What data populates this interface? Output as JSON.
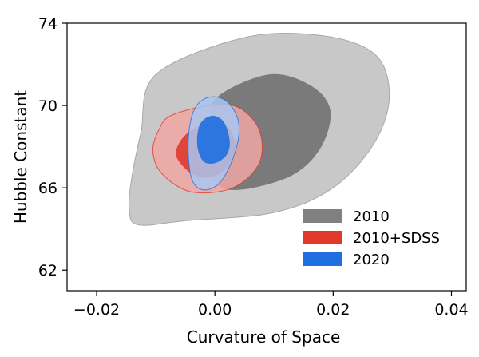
{
  "chart_data": {
    "type": "contour",
    "title": "",
    "xlabel": "Curvature of Space",
    "ylabel": "Hubble Constant",
    "xlim": [
      -0.025,
      0.0425
    ],
    "ylim": [
      61.0,
      74.0
    ],
    "x_ticks": [
      -0.02,
      0.0,
      0.02,
      0.04
    ],
    "x_tick_labels": [
      "−0.02",
      "0.00",
      "0.02",
      "0.04"
    ],
    "y_ticks": [
      62,
      66,
      70,
      74
    ],
    "y_tick_labels": [
      "62",
      "66",
      "70",
      "74"
    ],
    "grid": false,
    "legend_position": "lower-right",
    "series": [
      {
        "name": "2010",
        "color": "#808080",
        "inner_color": "#7a7a7a",
        "outer_color": "#c8c8c8",
        "contours": [
          {
            "level": "outer",
            "points": [
              [
                -0.01,
                71.5
              ],
              [
                0.005,
                73.3
              ],
              [
                0.018,
                73.4
              ],
              [
                0.027,
                72.5
              ],
              [
                0.0295,
                70.5
              ],
              [
                0.027,
                68.2
              ],
              [
                0.02,
                66.0
              ],
              [
                0.01,
                64.8
              ],
              [
                -0.005,
                64.4
              ],
              [
                -0.013,
                64.2
              ],
              [
                -0.0145,
                65.0
              ],
              [
                -0.014,
                66.6
              ],
              [
                -0.0125,
                68.7
              ]
            ]
          },
          {
            "level": "inner",
            "points": [
              [
                0.0,
                70.3
              ],
              [
                0.009,
                71.5
              ],
              [
                0.016,
                71.0
              ],
              [
                0.0195,
                69.8
              ],
              [
                0.018,
                68.0
              ],
              [
                0.013,
                66.6
              ],
              [
                0.004,
                65.9
              ],
              [
                0.0,
                66.4
              ],
              [
                -0.0005,
                68.6
              ]
            ]
          }
        ]
      },
      {
        "name": "2010+SDSS",
        "color": "#e0382b",
        "inner_color": "#e0382b",
        "outer_color": "#f0a7a2",
        "contours": [
          {
            "level": "outer",
            "points": [
              [
                -0.0075,
                69.5
              ],
              [
                -0.001,
                70.0
              ],
              [
                0.004,
                69.9
              ],
              [
                0.0075,
                68.8
              ],
              [
                0.0075,
                67.2
              ],
              [
                0.003,
                66.0
              ],
              [
                -0.004,
                65.8
              ],
              [
                -0.009,
                66.7
              ],
              [
                -0.0105,
                67.8
              ],
              [
                -0.0095,
                68.8
              ]
            ]
          },
          {
            "level": "inner",
            "points": [
              [
                -0.004,
                68.8
              ],
              [
                -0.001,
                69.2
              ],
              [
                0.002,
                69.0
              ],
              [
                0.0035,
                68.0
              ],
              [
                0.002,
                67.0
              ],
              [
                -0.001,
                66.5
              ],
              [
                -0.004,
                66.7
              ],
              [
                -0.0065,
                67.5
              ],
              [
                -0.006,
                68.2
              ]
            ]
          }
        ]
      },
      {
        "name": "2020",
        "color": "#1f6fe0",
        "inner_color": "#1f6fe0",
        "outer_color": "#a9c6f0",
        "contours": [
          {
            "level": "outer",
            "points": [
              [
                -0.0035,
                69.8
              ],
              [
                -0.001,
                70.4
              ],
              [
                0.002,
                70.2
              ],
              [
                0.004,
                69.2
              ],
              [
                0.0035,
                67.8
              ],
              [
                0.001,
                66.3
              ],
              [
                -0.002,
                65.9
              ],
              [
                -0.004,
                66.5
              ],
              [
                -0.0045,
                68.3
              ]
            ]
          },
          {
            "level": "inner",
            "points": [
              [
                -0.0025,
                69.1
              ],
              [
                -0.0005,
                69.5
              ],
              [
                0.0015,
                69.2
              ],
              [
                0.0025,
                68.3
              ],
              [
                0.002,
                67.6
              ],
              [
                0.0,
                67.2
              ],
              [
                -0.002,
                67.3
              ],
              [
                -0.003,
                68.1
              ]
            ]
          }
        ]
      }
    ]
  }
}
